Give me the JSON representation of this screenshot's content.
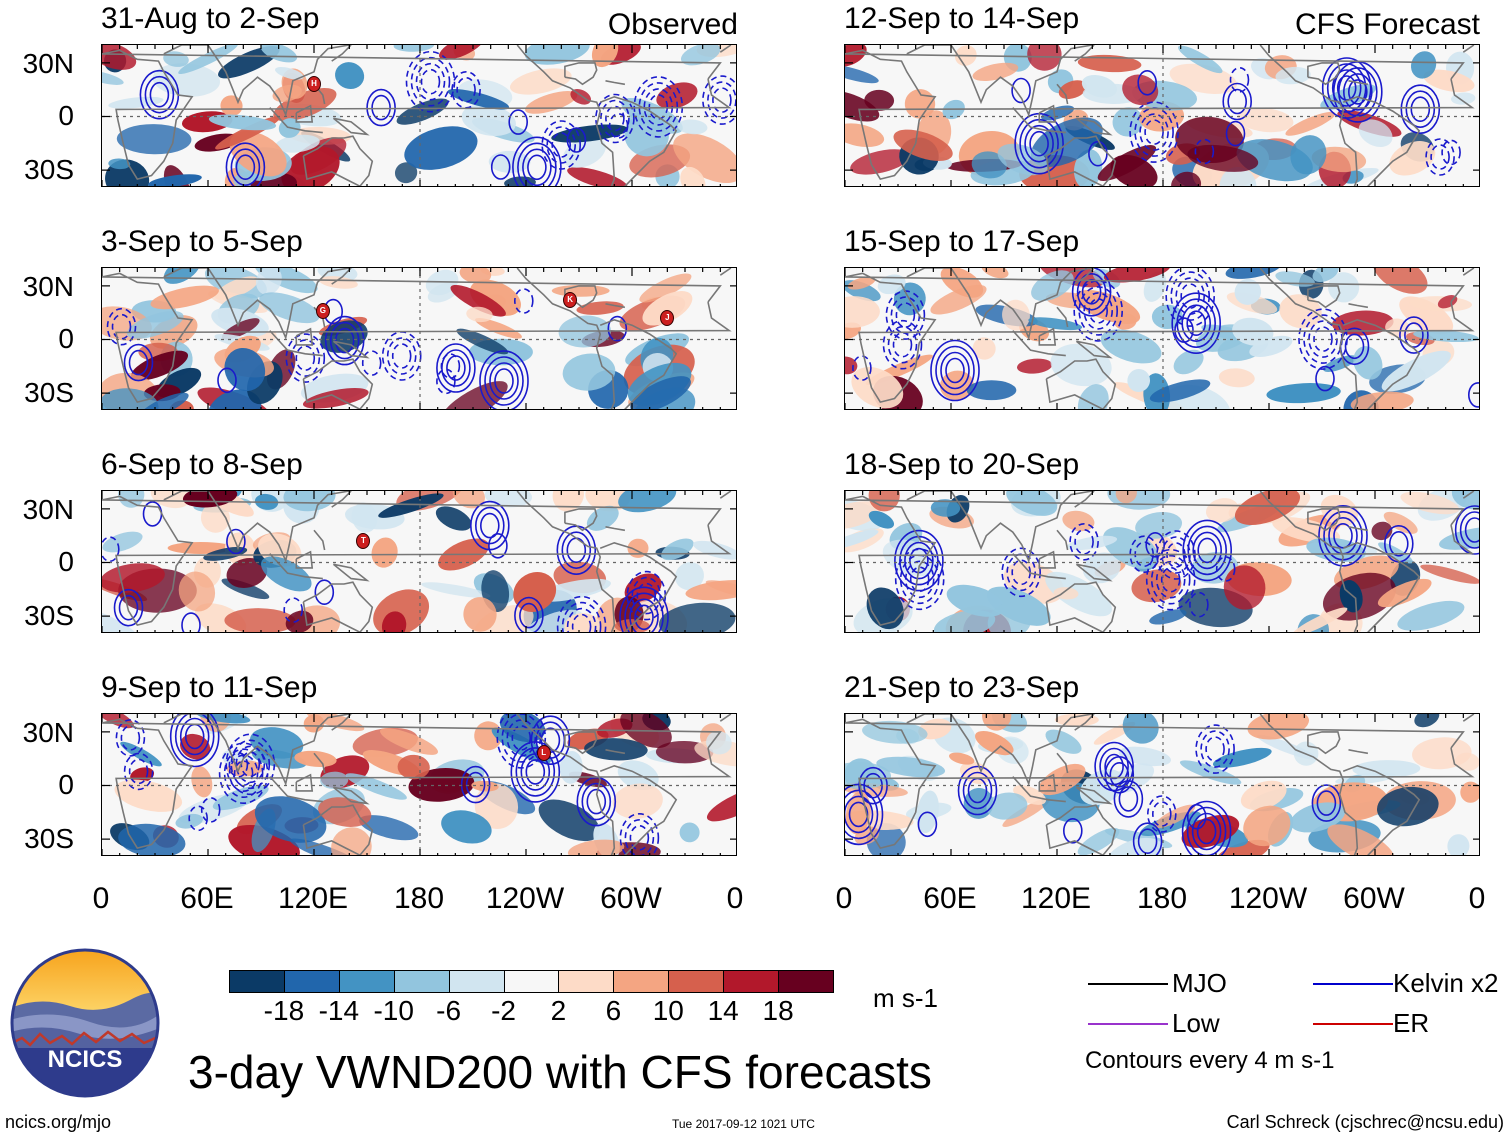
{
  "title": "3-day VWND200 with CFS forecasts",
  "left_header": "Observed",
  "right_header": "CFS Forecast",
  "panels_left": [
    {
      "title": "31-Aug to 2-Sep",
      "storms": [
        {
          "label": "H",
          "lon": 120,
          "lat": 18
        }
      ]
    },
    {
      "title": "3-Sep to 5-Sep",
      "storms": [
        {
          "label": "G",
          "lon": 125,
          "lat": 16
        },
        {
          "label": "K",
          "lon": 265,
          "lat": 22
        },
        {
          "label": "J",
          "lon": 320,
          "lat": 12
        }
      ]
    },
    {
      "title": "6-Sep to 8-Sep",
      "storms": [
        {
          "label": "T",
          "lon": 148,
          "lat": 12
        }
      ]
    },
    {
      "title": "9-Sep to 11-Sep",
      "storms": [
        {
          "label": "L",
          "lon": 250,
          "lat": 18
        }
      ]
    }
  ],
  "panels_right": [
    {
      "title": "12-Sep to 14-Sep",
      "storms": []
    },
    {
      "title": "15-Sep to 17-Sep",
      "storms": []
    },
    {
      "title": "18-Sep to 20-Sep",
      "storms": []
    },
    {
      "title": "21-Sep to 23-Sep",
      "storms": []
    }
  ],
  "lat_ticks": [
    "30N",
    "0",
    "30S"
  ],
  "lon_ticks": [
    "0",
    "60E",
    "120E",
    "180",
    "120W",
    "60W",
    "0"
  ],
  "colorbar": {
    "colors": [
      "#0b3a66",
      "#2166ac",
      "#4393c3",
      "#92c5de",
      "#d1e5f0",
      "#f7f7f7",
      "#fddbc7",
      "#f4a582",
      "#d6604d",
      "#b2182b",
      "#67001f"
    ],
    "labels": [
      "-18",
      "-14",
      "-10",
      "-6",
      "-2",
      "2",
      "6",
      "10",
      "14",
      "18"
    ],
    "units": "m s-1"
  },
  "legend": {
    "items": [
      {
        "name": "MJO",
        "color": "#000000"
      },
      {
        "name": "Kelvin x2",
        "color": "#0000cc"
      },
      {
        "name": "Low",
        "color": "#9933cc"
      },
      {
        "name": "ER",
        "color": "#cc0000"
      }
    ],
    "note": "Contours every 4 m s-1"
  },
  "logo_text": "NCICS",
  "footer": {
    "url": "ncics.org/mjo",
    "timestamp": "Tue 2017-09-12 1021 UTC",
    "credit": "Carl Schreck (cjschrec@ncsu.edu)"
  }
}
